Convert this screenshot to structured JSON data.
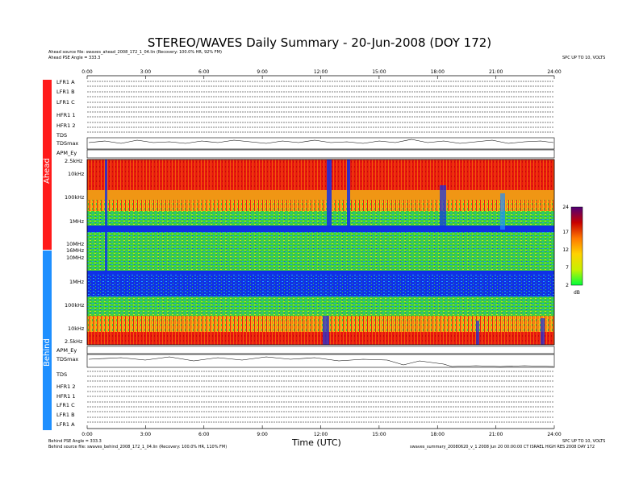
{
  "page": {
    "title": "STEREO/WAVES Daily Summary - 20-Jun-2008 (DOY 172)",
    "ahead_source": "Ahead source file: swaves_ahead_2008_172_1_04.lin (Recovery: 100.0% HR, 92% FM)",
    "ahead_angle": "Ahead PSE Angle = 333.3",
    "behind_angle": "Behind PSE Angle = 333.3",
    "behind_source": "Behind source file: swaves_behind_2008_172_1_04.lin (Recovery: 100.0% HR, 110% FM)",
    "top_right_note": "SPC UP TO 10, VOLTS",
    "bottom_right_note": "SPC UP TO 10, VOLTS",
    "footer_right": "swaves_summary_20080620_v_1 2008 Jun 20 00:00:00 CT ISRAEL HIGH RES 2008 DAY 172",
    "side_ahead": "Ahead",
    "side_behind": "Behind",
    "colors": {
      "ahead": "#ff1a1a",
      "behind": "#1e8fff"
    }
  },
  "chart_data": {
    "type": "heatmap",
    "title": "STEREO/WAVES Daily Summary - 20-Jun-2008 (DOY 172)",
    "xlabel": "Time (UTC)",
    "x_ticks": [
      "0:00",
      "3:00",
      "6:00",
      "9:00",
      "12:00",
      "15:00",
      "18:00",
      "21:00",
      "24:00"
    ],
    "xlim": [
      "00:00",
      "24:00"
    ],
    "ahead_panel_labels": [
      "LFR1 A",
      "LFR1 B",
      "LFR1 C",
      "HFR1 1",
      "HFR1 2",
      "TDS",
      "TDSmax",
      "APM_Ey"
    ],
    "behind_panel_labels": [
      "APM_Ey",
      "TDSmax",
      "TDS",
      "HFR1 2",
      "HFR1 1",
      "LFR1 C",
      "LFR1 B",
      "LFR1 A"
    ],
    "ahead_freq_ticks": [
      "2.5kHz",
      "10kHz",
      "100kHz",
      "1MHz",
      "10MHz",
      "16MHz"
    ],
    "behind_freq_ticks": [
      "10MHz",
      "1MHz",
      "100kHz",
      "10kHz",
      "2.5kHz"
    ],
    "colorbar": {
      "ticks": [
        24,
        17,
        12,
        7,
        2
      ],
      "unit": "dB",
      "range": [
        2,
        24
      ]
    },
    "heatmap_bands": {
      "ahead": [
        {
          "from": "2.5kHz",
          "to": "100kHz",
          "level_db": 20,
          "note": "intense red, blue streaks near 1:00, 12:00, 13:00"
        },
        {
          "from": "100kHz",
          "to": "1MHz",
          "level_db": 15,
          "note": "orange/yellow mixed"
        },
        {
          "from": "1MHz",
          "to": "16MHz",
          "level_db": 8,
          "note": "green speckle, blue band near 1MHz"
        }
      ],
      "behind": [
        {
          "from": "16MHz",
          "to": "1MHz",
          "level_db": 4,
          "note": "dark blue background"
        },
        {
          "from": "1MHz",
          "to": "100kHz",
          "level_db": 7,
          "note": "green/cyan"
        },
        {
          "from": "100kHz",
          "to": "2.5kHz",
          "level_db": 12,
          "note": "yellow/orange/red vertical streaks"
        }
      ]
    }
  }
}
